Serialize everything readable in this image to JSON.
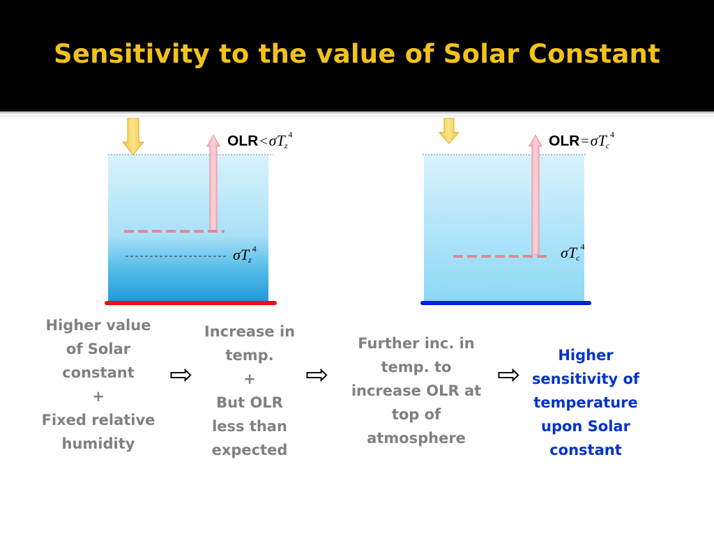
{
  "slide": {
    "title": "Sensitivity to the value of Solar Constant"
  },
  "diagram_left": {
    "top_eq": {
      "label": "OLR",
      "operator": "<",
      "sigma": "σ",
      "var": "T",
      "sub": "z",
      "exp": "4"
    },
    "level_eq": {
      "sigma": "σ",
      "var": "T",
      "sub": "z",
      "exp": "4"
    }
  },
  "diagram_right": {
    "top_eq": {
      "label": "OLR",
      "operator": "=",
      "sigma": "σ",
      "var": "T",
      "sub": "c",
      "exp": "4"
    },
    "level_eq": {
      "sigma": "σ",
      "var": "T",
      "sub": "c",
      "exp": "4"
    }
  },
  "statements": {
    "s1": [
      "Higher value",
      "of Solar",
      "constant",
      "+",
      "Fixed relative",
      "humidity"
    ],
    "s2": [
      "Increase in",
      "temp.",
      "+",
      "But OLR",
      "less than",
      "expected"
    ],
    "s3": [
      "Further inc. in",
      "temp. to",
      "increase OLR at",
      "top of",
      "atmosphere"
    ],
    "s4": [
      "Higher",
      "sensitivity of",
      "temperature",
      "upon Solar",
      "constant"
    ]
  },
  "arrows": {
    "glyph": "⇨"
  },
  "colors": {
    "title": "#f2c21b",
    "header_bg": "#000000",
    "statement_gray": "#808080",
    "statement_blue": "#0033cc",
    "left_ground": "#ee1111",
    "right_ground": "#0022dd",
    "sun_arrow": "#f7d154",
    "olr_arrow": "#f6b8c0",
    "dashed_level": "#e08a94"
  }
}
